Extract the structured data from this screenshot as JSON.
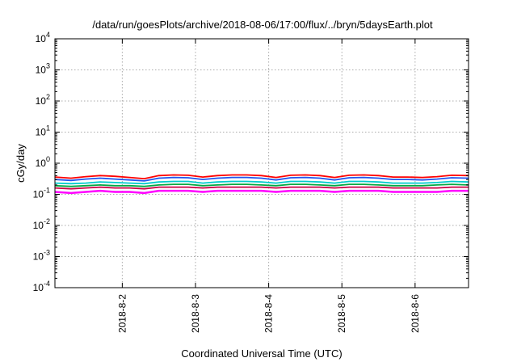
{
  "chart_data": {
    "type": "line",
    "title": "/data/run/goesPlots/archive/2018-08-06/17:00/flux/../bryn/5daysEarth.plot",
    "xlabel": "Coordinated Universal Time (UTC)",
    "ylabel": "cGy/day",
    "y_scale": "log",
    "ylim": [
      0.0001,
      10000
    ],
    "xlim": [
      0.08,
      5.73
    ],
    "x_ticks": [
      {
        "value": 1,
        "label": "2018-8-2"
      },
      {
        "value": 2,
        "label": "2018-8-3"
      },
      {
        "value": 3,
        "label": "2018-8-4"
      },
      {
        "value": 4,
        "label": "2018-8-5"
      },
      {
        "value": 5,
        "label": "2018-8-6"
      }
    ],
    "y_ticks": [
      {
        "value": 0.0001,
        "base": "10",
        "exp": "-4"
      },
      {
        "value": 0.001,
        "base": "10",
        "exp": "-3"
      },
      {
        "value": 0.01,
        "base": "10",
        "exp": "-2"
      },
      {
        "value": 0.1,
        "base": "10",
        "exp": "-1"
      },
      {
        "value": 1,
        "base": "10",
        "exp": "0"
      },
      {
        "value": 10,
        "base": "10",
        "exp": "1"
      },
      {
        "value": 100,
        "base": "10",
        "exp": "2"
      },
      {
        "value": 1000,
        "base": "10",
        "exp": "3"
      },
      {
        "value": 10000,
        "base": "10",
        "exp": "4"
      }
    ],
    "grid": true,
    "legend": "none",
    "x_days": [
      0.08,
      0.3,
      0.5,
      0.7,
      0.9,
      1.1,
      1.3,
      1.5,
      1.7,
      1.9,
      2.1,
      2.3,
      2.5,
      2.7,
      2.9,
      3.1,
      3.3,
      3.5,
      3.7,
      3.9,
      4.1,
      4.3,
      4.5,
      4.7,
      4.9,
      5.1,
      5.3,
      5.5,
      5.73
    ],
    "series": [
      {
        "color": "#ff00ff",
        "values": [
          0.12,
          0.11,
          0.12,
          0.13,
          0.12,
          0.12,
          0.11,
          0.13,
          0.13,
          0.13,
          0.12,
          0.13,
          0.13,
          0.13,
          0.13,
          0.12,
          0.13,
          0.13,
          0.13,
          0.12,
          0.13,
          0.13,
          0.13,
          0.12,
          0.12,
          0.12,
          0.12,
          0.13,
          0.13
        ]
      },
      {
        "color": "#cc0044",
        "values": [
          0.16,
          0.15,
          0.16,
          0.17,
          0.16,
          0.16,
          0.15,
          0.17,
          0.17,
          0.17,
          0.16,
          0.17,
          0.17,
          0.17,
          0.17,
          0.16,
          0.17,
          0.17,
          0.17,
          0.16,
          0.17,
          0.17,
          0.17,
          0.16,
          0.16,
          0.16,
          0.16,
          0.17,
          0.17
        ]
      },
      {
        "color": "#00aa44",
        "values": [
          0.19,
          0.18,
          0.19,
          0.2,
          0.19,
          0.19,
          0.18,
          0.2,
          0.21,
          0.21,
          0.19,
          0.2,
          0.21,
          0.21,
          0.2,
          0.19,
          0.21,
          0.21,
          0.2,
          0.19,
          0.21,
          0.21,
          0.2,
          0.19,
          0.19,
          0.19,
          0.2,
          0.21,
          0.2
        ]
      },
      {
        "color": "#00cccc",
        "values": [
          0.23,
          0.22,
          0.23,
          0.25,
          0.24,
          0.23,
          0.22,
          0.25,
          0.26,
          0.26,
          0.23,
          0.25,
          0.26,
          0.26,
          0.25,
          0.23,
          0.26,
          0.26,
          0.25,
          0.23,
          0.26,
          0.26,
          0.25,
          0.23,
          0.23,
          0.23,
          0.24,
          0.26,
          0.25
        ]
      },
      {
        "color": "#2255ee",
        "values": [
          0.3,
          0.28,
          0.31,
          0.33,
          0.31,
          0.29,
          0.27,
          0.33,
          0.35,
          0.34,
          0.3,
          0.33,
          0.35,
          0.35,
          0.33,
          0.29,
          0.34,
          0.35,
          0.33,
          0.29,
          0.34,
          0.35,
          0.33,
          0.3,
          0.3,
          0.29,
          0.31,
          0.34,
          0.33
        ]
      },
      {
        "color": "#ff0000",
        "values": [
          0.36,
          0.33,
          0.37,
          0.4,
          0.38,
          0.35,
          0.32,
          0.4,
          0.42,
          0.41,
          0.36,
          0.4,
          0.42,
          0.42,
          0.4,
          0.35,
          0.41,
          0.42,
          0.4,
          0.35,
          0.41,
          0.42,
          0.4,
          0.36,
          0.36,
          0.35,
          0.37,
          0.41,
          0.4
        ]
      }
    ]
  }
}
